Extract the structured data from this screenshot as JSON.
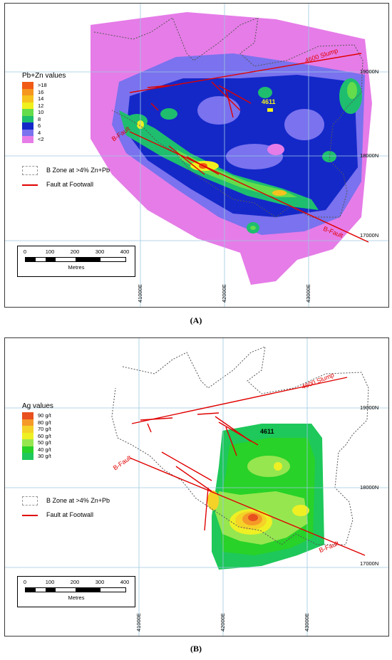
{
  "panelA": {
    "legend_title": "Pb+Zn values",
    "legend": [
      {
        "label": ">18",
        "color": "#f05a14"
      },
      {
        "label": "16",
        "color": "#f5961e"
      },
      {
        "label": "14",
        "color": "#f7c21e"
      },
      {
        "label": "12",
        "color": "#f0f01e"
      },
      {
        "label": "10",
        "color": "#64dc4b"
      },
      {
        "label": "8",
        "color": "#1ebe6e"
      },
      {
        "label": "6",
        "color": "#1428c8"
      },
      {
        "label": "4",
        "color": "#7a72ee"
      },
      {
        "label": "<2",
        "color": "#e67ce8"
      }
    ],
    "bzone_label": "B Zone at >4% Zn+Pb",
    "fault_label": "Fault at Footwall",
    "fault_names": [
      "4600 Slump",
      "B-Fault",
      "B-Fault"
    ],
    "drillhole": "4611",
    "caption": "(A)"
  },
  "panelB": {
    "legend_title": "Ag values",
    "legend": [
      {
        "label": "90 g/t",
        "color": "#e8501e"
      },
      {
        "label": "80 g/t",
        "color": "#f59a28"
      },
      {
        "label": "70 g/t",
        "color": "#f5d228"
      },
      {
        "label": "60 g/t",
        "color": "#eef024"
      },
      {
        "label": "50 g/t",
        "color": "#96e650"
      },
      {
        "label": "40 g/t",
        "color": "#28d228"
      },
      {
        "label": "30 g/t",
        "color": "#1ec85a"
      }
    ],
    "bzone_label": "B Zone at >4% Zn+Pb",
    "fault_label": "Fault at Footwall",
    "fault_names": [
      "4600 Slump",
      "B-Fault",
      "B-Fault"
    ],
    "drillhole": "4611",
    "caption": "(B)"
  },
  "grid": {
    "northings": [
      "19000N",
      "18000N",
      "17000N"
    ],
    "eastings": [
      "41000E",
      "42000E",
      "43000E"
    ]
  },
  "scale": {
    "ticks": [
      "0",
      "100",
      "200",
      "300",
      "400"
    ],
    "unit": "Metres"
  },
  "colors": {
    "fault": "#e00000",
    "grid": "#9cc8e0",
    "outline": "#555555"
  }
}
